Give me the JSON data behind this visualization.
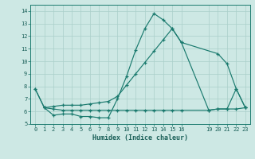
{
  "xlabel": "Humidex (Indice chaleur)",
  "bg_color": "#cde8e4",
  "grid_color": "#aacfca",
  "line_color": "#1a7a6e",
  "xlim": [
    -0.5,
    23.5
  ],
  "ylim": [
    5.0,
    14.5
  ],
  "yticks": [
    5,
    6,
    7,
    8,
    9,
    10,
    11,
    12,
    13,
    14
  ],
  "xticks": [
    0,
    1,
    2,
    3,
    4,
    5,
    6,
    7,
    8,
    9,
    10,
    11,
    12,
    13,
    14,
    15,
    16,
    19,
    20,
    21,
    22,
    23
  ],
  "line_a_x": [
    0,
    1,
    2,
    3,
    4,
    5,
    6,
    7,
    8,
    9,
    10,
    11,
    12,
    13,
    14,
    15,
    16,
    19,
    20,
    21,
    22,
    23
  ],
  "line_a_y": [
    7.8,
    6.3,
    5.7,
    5.8,
    5.8,
    5.6,
    5.6,
    5.5,
    5.5,
    7.0,
    8.8,
    10.9,
    12.6,
    13.8,
    13.3,
    12.6,
    11.5,
    6.1,
    6.2,
    6.2,
    7.8,
    6.3
  ],
  "line_b_x": [
    0,
    1,
    2,
    3,
    4,
    5,
    6,
    7,
    8,
    9,
    10,
    11,
    12,
    13,
    14,
    15,
    16,
    20,
    21,
    22,
    23
  ],
  "line_b_y": [
    7.8,
    6.3,
    6.4,
    6.5,
    6.5,
    6.5,
    6.6,
    6.7,
    6.8,
    7.2,
    8.1,
    9.0,
    9.9,
    10.8,
    11.7,
    12.6,
    11.5,
    10.6,
    9.8,
    7.8,
    6.3
  ],
  "line_c_x": [
    1,
    2,
    3,
    4,
    5,
    6,
    7,
    8,
    9,
    10,
    11,
    12,
    13,
    14,
    15,
    16,
    19,
    20,
    21,
    22,
    23
  ],
  "line_c_y": [
    6.3,
    6.2,
    6.1,
    6.1,
    6.1,
    6.1,
    6.1,
    6.1,
    6.1,
    6.1,
    6.1,
    6.1,
    6.1,
    6.1,
    6.1,
    6.1,
    6.1,
    6.2,
    6.2,
    6.2,
    6.3
  ]
}
